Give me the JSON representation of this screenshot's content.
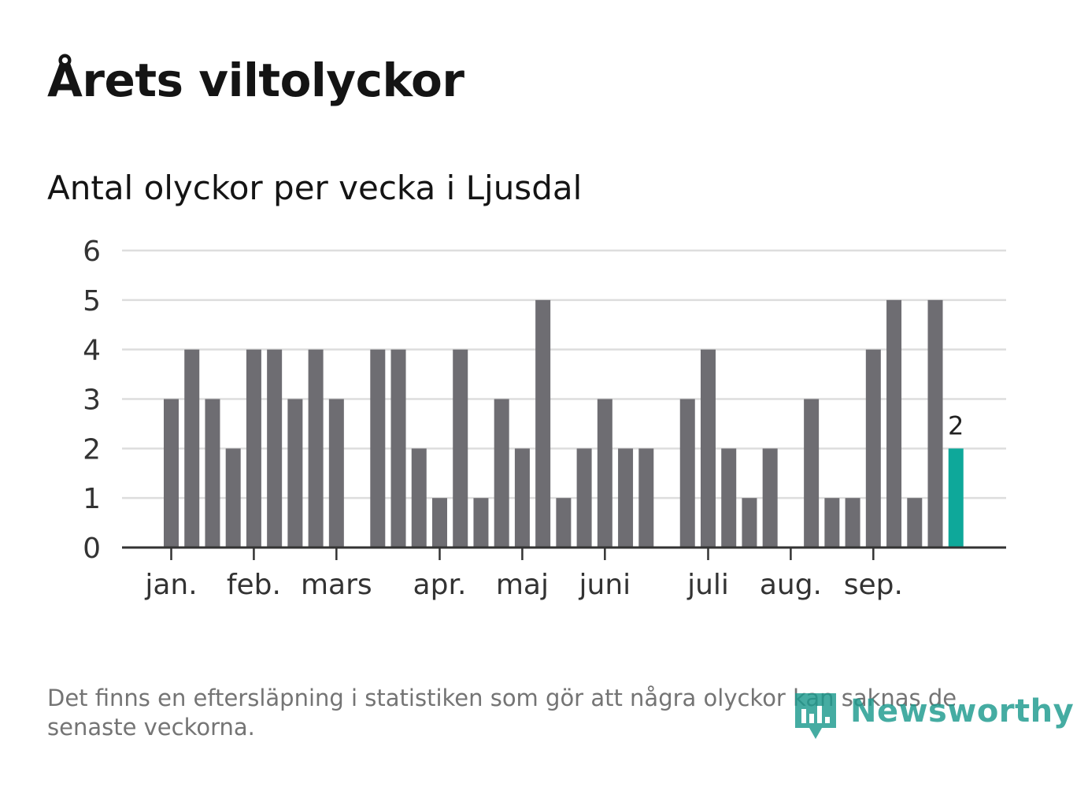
{
  "title": "Årets viltolyckor",
  "subtitle": "Antal olyckor per vecka i Ljusdal",
  "footnote": "Det finns en eftersläpning i statistiken som gör att några olyckor kan saknas de senaste veckorna.",
  "brand": {
    "name": "Newsworthy",
    "icon": "newsworthy-logo-icon",
    "color": "#1d9a8e"
  },
  "colors": {
    "bar": "#6e6d72",
    "highlight": "#0ea89a",
    "grid": "#dddddd",
    "axis": "#333333"
  },
  "chart_data": {
    "type": "bar",
    "title": "Antal olyckor per vecka i Ljusdal",
    "xlabel": "",
    "ylabel": "",
    "ylim": [
      0,
      6
    ],
    "yticks": [
      0,
      1,
      2,
      3,
      4,
      5,
      6
    ],
    "grid": true,
    "weeks": [
      1,
      2,
      3,
      4,
      5,
      6,
      7,
      8,
      9,
      10,
      11,
      12,
      13,
      14,
      15,
      16,
      17,
      18,
      19,
      20,
      21,
      22,
      23,
      24,
      25,
      26,
      27,
      28,
      29,
      30,
      31,
      32,
      33,
      34,
      35,
      36,
      37,
      38,
      39
    ],
    "values": [
      3,
      4,
      3,
      2,
      4,
      4,
      3,
      4,
      3,
      0,
      4,
      4,
      2,
      1,
      4,
      1,
      3,
      2,
      5,
      1,
      2,
      3,
      2,
      2,
      0,
      3,
      4,
      2,
      1,
      2,
      0,
      3,
      1,
      1,
      4,
      5,
      1,
      5,
      2
    ],
    "highlight_index": 38,
    "highlight_label": "2",
    "month_labels": [
      {
        "label": "jan.",
        "week": 1
      },
      {
        "label": "feb.",
        "week": 5
      },
      {
        "label": "mars",
        "week": 9
      },
      {
        "label": "apr.",
        "week": 14
      },
      {
        "label": "maj",
        "week": 18
      },
      {
        "label": "juni",
        "week": 22
      },
      {
        "label": "juli",
        "week": 27
      },
      {
        "label": "aug.",
        "week": 31
      },
      {
        "label": "sep.",
        "week": 35
      }
    ]
  }
}
